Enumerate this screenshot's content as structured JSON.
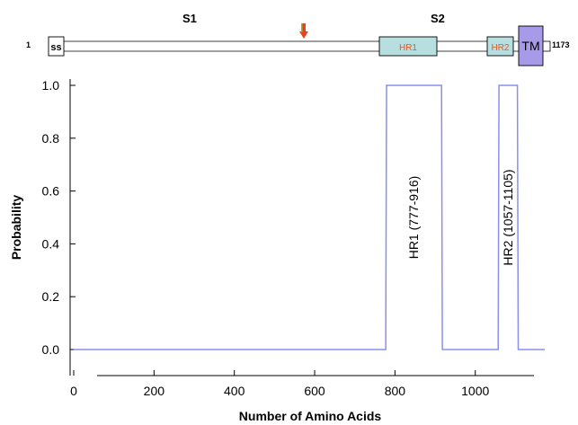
{
  "domain_diagram": {
    "start_label": "1",
    "end_label": "1173",
    "region_labels": [
      "S1",
      "S2"
    ],
    "domains": [
      {
        "label": "ss",
        "start": 0,
        "end": 33,
        "color": "#ffffff",
        "text_color": "#000000"
      },
      {
        "label": "HR1",
        "start": 777,
        "end": 916,
        "color": "#b7dfe0",
        "text_color": "#e05a2b"
      },
      {
        "label": "HR2",
        "start": 1057,
        "end": 1105,
        "color": "#b7dfe0",
        "text_color": "#e05a2b"
      },
      {
        "label": "TM",
        "start": 1110,
        "end": 1170,
        "color": "#a79ae8",
        "text_color": "#000000"
      }
    ],
    "cleavage_arrow_position": 600,
    "cleavage_arrow_color": "#e8431c"
  },
  "chart_data": {
    "type": "line",
    "xlabel": "Number of Amino Acids",
    "ylabel": "Probability",
    "xlim": [
      0,
      1173
    ],
    "ylim": [
      0,
      1.0
    ],
    "xticks": [
      "0",
      "200",
      "400",
      "600",
      "800",
      "1000"
    ],
    "xtick_values": [
      0,
      200,
      400,
      600,
      800,
      1000
    ],
    "yticks": [
      "0.0",
      "0.2",
      "0.4",
      "0.6",
      "0.8",
      "1.0"
    ],
    "ytick_values": [
      0.0,
      0.2,
      0.4,
      0.6,
      0.8,
      1.0
    ],
    "grid": false,
    "line_color": "#8a8ef0",
    "series": [
      {
        "x": [
          0,
          777,
          779,
          916,
          918,
          1057,
          1059,
          1105,
          1107,
          1173
        ],
        "y": [
          0,
          0,
          1,
          1,
          0,
          0,
          1,
          1,
          0,
          0
        ]
      }
    ],
    "annotations": [
      {
        "text": "HR1 (777-916)",
        "x": 846,
        "y": 0.5
      },
      {
        "text": "HR2 (1057-1105)",
        "x": 1081,
        "y": 0.5
      }
    ]
  }
}
